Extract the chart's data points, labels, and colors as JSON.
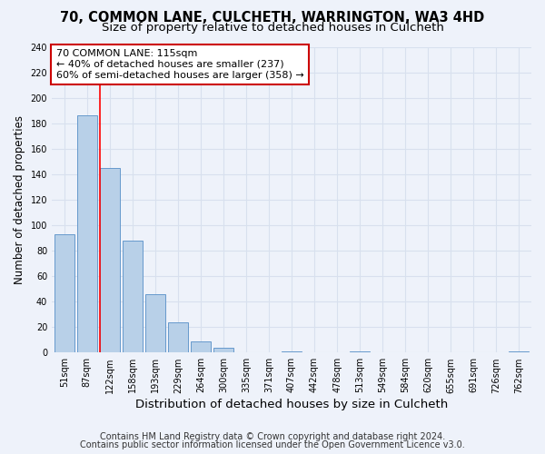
{
  "title": "70, COMMON LANE, CULCHETH, WARRINGTON, WA3 4HD",
  "subtitle": "Size of property relative to detached houses in Culcheth",
  "xlabel": "Distribution of detached houses by size in Culcheth",
  "ylabel": "Number of detached properties",
  "bin_labels": [
    "51sqm",
    "87sqm",
    "122sqm",
    "158sqm",
    "193sqm",
    "229sqm",
    "264sqm",
    "300sqm",
    "335sqm",
    "371sqm",
    "407sqm",
    "442sqm",
    "478sqm",
    "513sqm",
    "549sqm",
    "584sqm",
    "620sqm",
    "655sqm",
    "691sqm",
    "726sqm",
    "762sqm"
  ],
  "bar_values": [
    93,
    186,
    145,
    88,
    46,
    24,
    9,
    4,
    0,
    0,
    1,
    0,
    0,
    1,
    0,
    0,
    0,
    0,
    0,
    0,
    1
  ],
  "bar_color": "#b8d0e8",
  "bar_edge_color": "#6699cc",
  "redline_index": 2,
  "annotation_title": "70 COMMON LANE: 115sqm",
  "annotation_line1": "← 40% of detached houses are smaller (237)",
  "annotation_line2": "60% of semi-detached houses are larger (358) →",
  "annotation_box_color": "#ffffff",
  "annotation_box_edge": "#cc0000",
  "ylim": [
    0,
    240
  ],
  "yticks": [
    0,
    20,
    40,
    60,
    80,
    100,
    120,
    140,
    160,
    180,
    200,
    220,
    240
  ],
  "footnote1": "Contains HM Land Registry data © Crown copyright and database right 2024.",
  "footnote2": "Contains public sector information licensed under the Open Government Licence v3.0.",
  "bg_color": "#eef2fa",
  "plot_bg_color": "#eef2fa",
  "grid_color": "#d8e0ee",
  "title_fontsize": 10.5,
  "subtitle_fontsize": 9.5,
  "xlabel_fontsize": 9.5,
  "ylabel_fontsize": 8.5,
  "tick_fontsize": 7,
  "footnote_fontsize": 7
}
